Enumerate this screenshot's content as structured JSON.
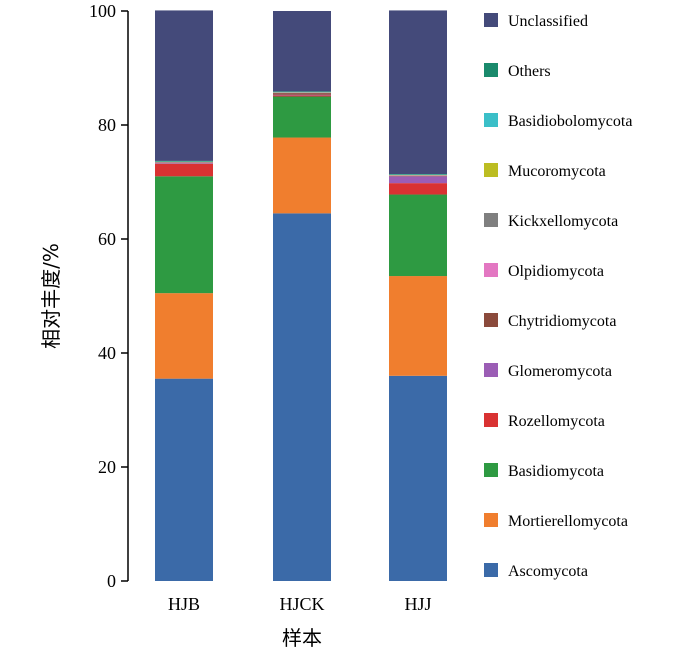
{
  "chart_data": {
    "type": "bar",
    "stacked": true,
    "categories": [
      "HJB",
      "HJCK",
      "HJJ"
    ],
    "xlabel": "样本",
    "ylabel": "相对丰度/%",
    "ylim": [
      0,
      100
    ],
    "yticks": [
      0,
      20,
      40,
      60,
      80,
      100
    ],
    "legend_position": "right",
    "series": [
      {
        "name": "Ascomycota",
        "color": "#3b6aa8",
        "values": [
          35.5,
          64.5,
          36.0
        ]
      },
      {
        "name": "Mortierellomycota",
        "color": "#f07e2e",
        "values": [
          15.0,
          13.3,
          17.5
        ]
      },
      {
        "name": "Basidiomycota",
        "color": "#2e9a42",
        "values": [
          20.5,
          7.2,
          14.3
        ]
      },
      {
        "name": "Rozellomycota",
        "color": "#d93232",
        "values": [
          2.2,
          0.2,
          2.0
        ]
      },
      {
        "name": "Glomeromycota",
        "color": "#9b5db5",
        "values": [
          0.1,
          0.1,
          1.2
        ]
      },
      {
        "name": "Chytridiomycota",
        "color": "#8b4a3c",
        "values": [
          0.1,
          0.3,
          0.1
        ]
      },
      {
        "name": "Olpidiomycota",
        "color": "#e377c2",
        "values": [
          0.05,
          0.05,
          0.05
        ]
      },
      {
        "name": "Kickxellomycota",
        "color": "#7f7f7f",
        "values": [
          0.05,
          0.05,
          0.05
        ]
      },
      {
        "name": "Mucoromycota",
        "color": "#bcbd22",
        "values": [
          0.05,
          0.05,
          0.05
        ]
      },
      {
        "name": "Basidiobolomycota",
        "color": "#3bbfc8",
        "values": [
          0.05,
          0.05,
          0.05
        ]
      },
      {
        "name": "Others",
        "color": "#1a8a6c",
        "values": [
          0.1,
          0.1,
          0.1
        ]
      },
      {
        "name": "Unclassified",
        "color": "#444a7a",
        "values": [
          26.4,
          14.1,
          28.7
        ]
      }
    ]
  }
}
